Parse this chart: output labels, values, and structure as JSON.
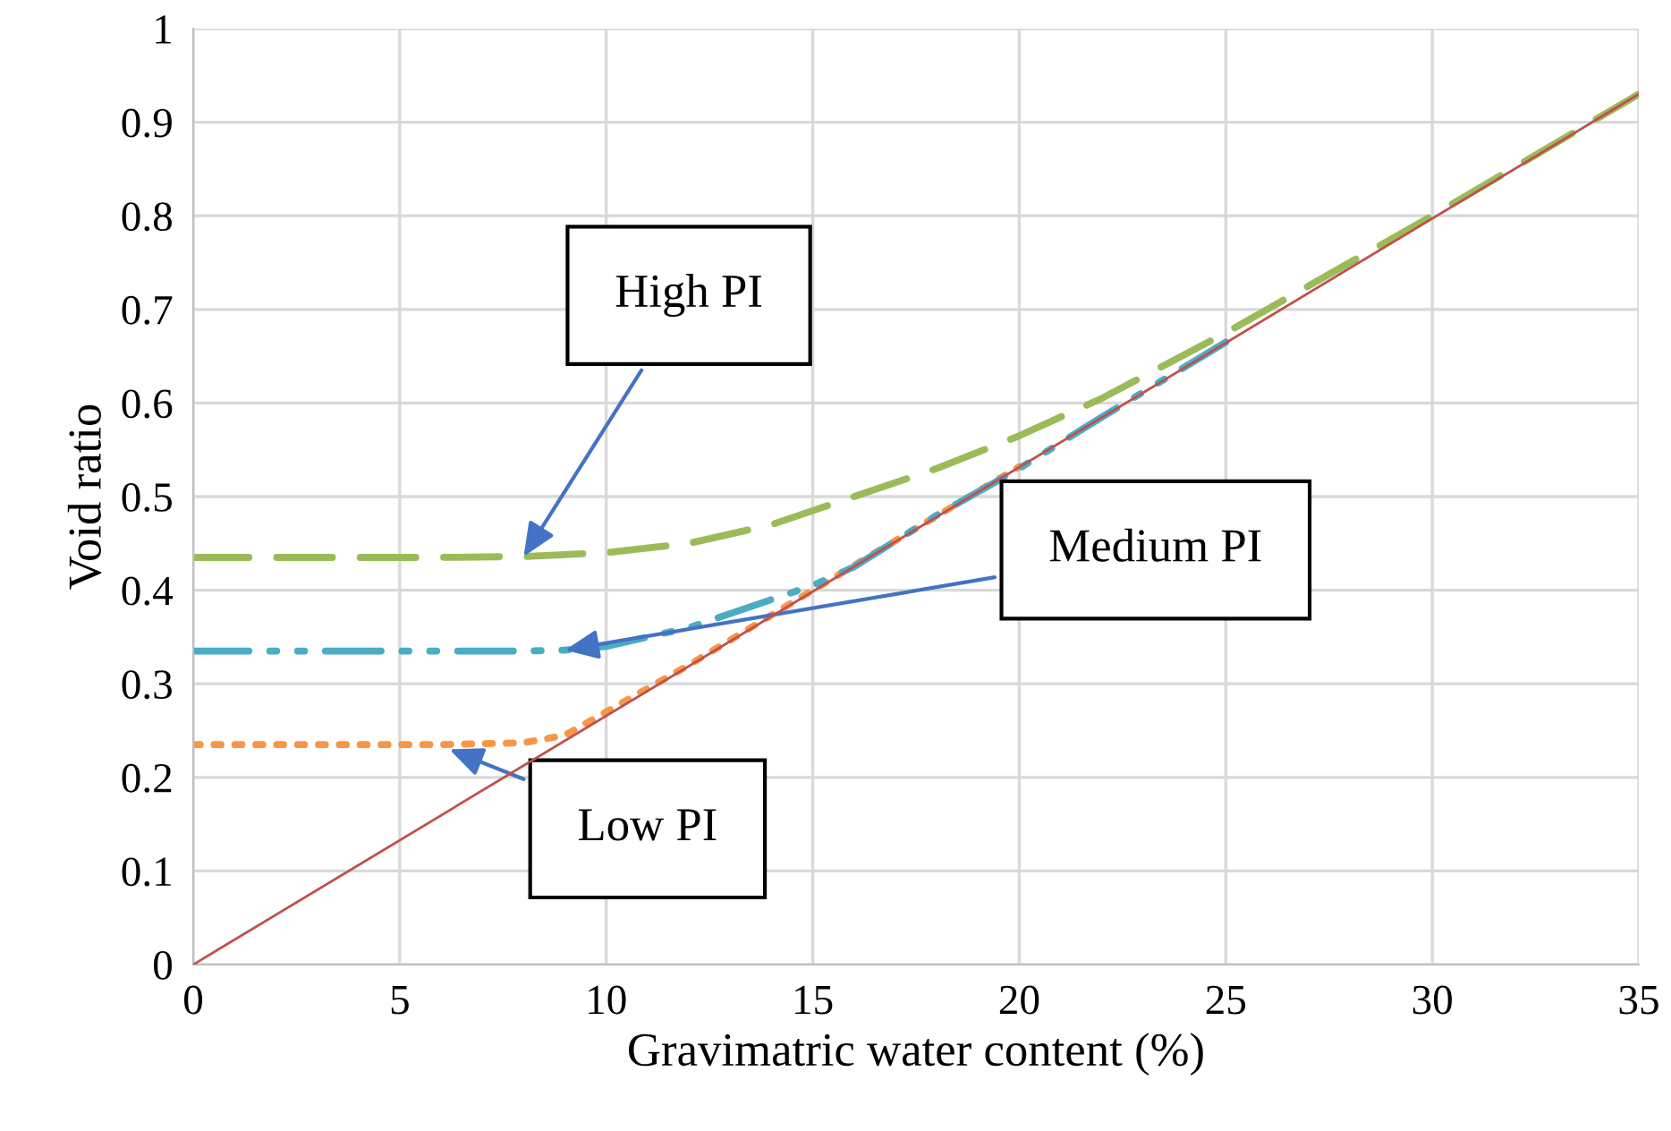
{
  "chart_data": {
    "type": "line",
    "xlabel": "Gravimatric water content (%)",
    "ylabel": "Void ratio",
    "xlim": [
      0,
      35
    ],
    "xticks": [
      0,
      5,
      10,
      15,
      20,
      25,
      30,
      35
    ],
    "ylim": [
      0,
      1
    ],
    "yticks": [
      0,
      0.1,
      0.2,
      0.3,
      0.4,
      0.5,
      0.6,
      0.7,
      0.8,
      0.9,
      1
    ],
    "grid": true,
    "legend": false,
    "marker": "none",
    "series": [
      {
        "color": "#c0504d",
        "line_style": "solid",
        "x": [
          0,
          35
        ],
        "values": [
          0,
          0.93
        ]
      },
      {
        "color": "#f79646",
        "line_style": "dotted",
        "x": [
          0,
          2,
          4,
          6,
          8,
          9,
          10,
          12,
          15,
          20
        ],
        "values": [
          0.235,
          0.235,
          0.235,
          0.235,
          0.237,
          0.245,
          0.27,
          0.32,
          0.4,
          0.532
        ]
      },
      {
        "color": "#4bacc6",
        "line_style": "dashdot",
        "x": [
          0,
          2,
          4,
          6,
          8,
          9,
          10,
          12,
          14,
          15,
          16,
          18,
          20,
          22,
          25
        ],
        "values": [
          0.335,
          0.335,
          0.335,
          0.335,
          0.335,
          0.336,
          0.34,
          0.36,
          0.39,
          0.405,
          0.425,
          0.48,
          0.53,
          0.585,
          0.665
        ]
      },
      {
        "color": "#9bbb59",
        "line_style": "dashed",
        "x": [
          0,
          2,
          4,
          6,
          8,
          10,
          12,
          14,
          16,
          18,
          20,
          22,
          25,
          28,
          30,
          35
        ],
        "values": [
          0.435,
          0.435,
          0.435,
          0.435,
          0.436,
          0.44,
          0.45,
          0.47,
          0.5,
          0.53,
          0.565,
          0.605,
          0.675,
          0.75,
          0.8,
          0.93
        ]
      }
    ],
    "annotations": [
      {
        "text": "High PI",
        "x": 8,
        "y": 0.436
      },
      {
        "text": "Medium PI",
        "x": 9,
        "y": 0.336
      },
      "Low PI"
    ]
  }
}
